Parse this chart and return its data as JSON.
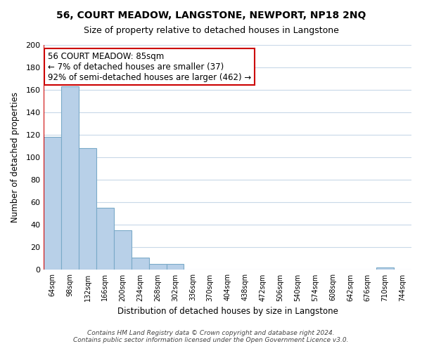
{
  "title": "56, COURT MEADOW, LANGSTONE, NEWPORT, NP18 2NQ",
  "subtitle": "Size of property relative to detached houses in Langstone",
  "xlabel": "Distribution of detached houses by size in Langstone",
  "ylabel": "Number of detached properties",
  "categories": [
    "64sqm",
    "98sqm",
    "132sqm",
    "166sqm",
    "200sqm",
    "234sqm",
    "268sqm",
    "302sqm",
    "336sqm",
    "370sqm",
    "404sqm",
    "438sqm",
    "472sqm",
    "506sqm",
    "540sqm",
    "574sqm",
    "608sqm",
    "642sqm",
    "676sqm",
    "710sqm",
    "744sqm"
  ],
  "values": [
    118,
    163,
    108,
    55,
    35,
    11,
    5,
    5,
    0,
    0,
    0,
    0,
    0,
    0,
    0,
    0,
    0,
    0,
    0,
    2,
    0
  ],
  "bar_color": "#b8d0e8",
  "bar_edge_color": "#7aaac8",
  "highlight_color": "#cc0000",
  "ylim": [
    0,
    200
  ],
  "yticks": [
    0,
    20,
    40,
    60,
    80,
    100,
    120,
    140,
    160,
    180,
    200
  ],
  "annotation_text_line1": "56 COURT MEADOW: 85sqm",
  "annotation_text_line2": "← 7% of detached houses are smaller (37)",
  "annotation_text_line3": "92% of semi-detached houses are larger (462) →",
  "footer_line1": "Contains HM Land Registry data © Crown copyright and database right 2024.",
  "footer_line2": "Contains public sector information licensed under the Open Government Licence v3.0.",
  "background_color": "#ffffff",
  "grid_color": "#c8d8e8"
}
